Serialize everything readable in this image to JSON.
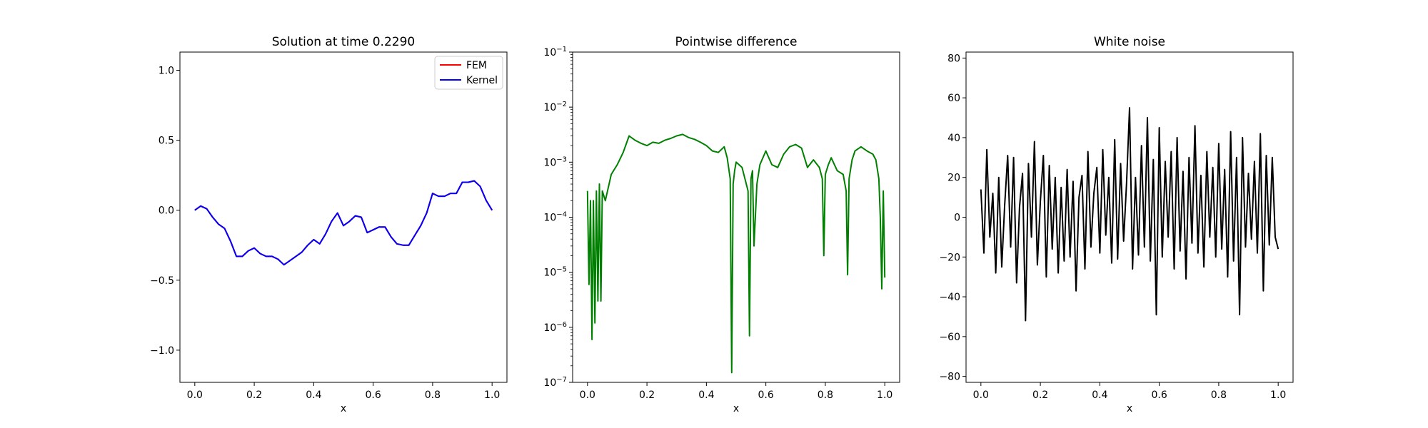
{
  "chart_data": [
    {
      "type": "line",
      "title": "Solution at time 0.2290",
      "xlabel": "x",
      "ylabel": "",
      "xlim": [
        -0.05,
        1.05
      ],
      "ylim": [
        -1.23,
        1.13
      ],
      "xticks": [
        0.0,
        0.2,
        0.4,
        0.6,
        0.8,
        1.0
      ],
      "xtick_labels": [
        "0.0",
        "0.2",
        "0.4",
        "0.6",
        "0.8",
        "1.0"
      ],
      "yticks": [
        -1.0,
        -0.5,
        0.0,
        0.5,
        1.0
      ],
      "ytick_labels": [
        "−1.0",
        "−0.5",
        "0.0",
        "0.5",
        "1.0"
      ],
      "legend_position": "top-right",
      "series": [
        {
          "name": "FEM",
          "color": "#ff0000",
          "x": [
            0.0,
            0.02,
            0.04,
            0.06,
            0.08,
            0.1,
            0.12,
            0.14,
            0.16,
            0.18,
            0.2,
            0.22,
            0.24,
            0.26,
            0.28,
            0.3,
            0.32,
            0.34,
            0.36,
            0.38,
            0.4,
            0.42,
            0.44,
            0.46,
            0.48,
            0.5,
            0.52,
            0.54,
            0.56,
            0.58,
            0.6,
            0.62,
            0.64,
            0.66,
            0.68,
            0.7,
            0.72,
            0.74,
            0.76,
            0.78,
            0.8,
            0.82,
            0.84,
            0.86,
            0.88,
            0.9,
            0.92,
            0.94,
            0.96,
            0.98,
            1.0
          ],
          "y": [
            0.0,
            0.03,
            0.01,
            -0.05,
            -0.1,
            -0.13,
            -0.22,
            -0.33,
            -0.33,
            -0.29,
            -0.27,
            -0.31,
            -0.33,
            -0.33,
            -0.35,
            -0.39,
            -0.36,
            -0.33,
            -0.3,
            -0.25,
            -0.21,
            -0.24,
            -0.17,
            -0.08,
            -0.02,
            -0.11,
            -0.08,
            -0.04,
            -0.05,
            -0.16,
            -0.14,
            -0.12,
            -0.12,
            -0.19,
            -0.24,
            -0.25,
            -0.25,
            -0.18,
            -0.11,
            -0.02,
            0.12,
            0.1,
            0.1,
            0.12,
            0.12,
            0.2,
            0.2,
            0.21,
            0.17,
            0.07,
            0.0
          ]
        },
        {
          "name": "Kernel",
          "color": "#0000ff",
          "x": [
            0.0,
            0.02,
            0.04,
            0.06,
            0.08,
            0.1,
            0.12,
            0.14,
            0.16,
            0.18,
            0.2,
            0.22,
            0.24,
            0.26,
            0.28,
            0.3,
            0.32,
            0.34,
            0.36,
            0.38,
            0.4,
            0.42,
            0.44,
            0.46,
            0.48,
            0.5,
            0.52,
            0.54,
            0.56,
            0.58,
            0.6,
            0.62,
            0.64,
            0.66,
            0.68,
            0.7,
            0.72,
            0.74,
            0.76,
            0.78,
            0.8,
            0.82,
            0.84,
            0.86,
            0.88,
            0.9,
            0.92,
            0.94,
            0.96,
            0.98,
            1.0
          ],
          "y": [
            0.0,
            0.03,
            0.01,
            -0.05,
            -0.1,
            -0.13,
            -0.22,
            -0.33,
            -0.33,
            -0.29,
            -0.27,
            -0.31,
            -0.33,
            -0.33,
            -0.35,
            -0.39,
            -0.36,
            -0.33,
            -0.3,
            -0.25,
            -0.21,
            -0.24,
            -0.17,
            -0.08,
            -0.02,
            -0.11,
            -0.08,
            -0.04,
            -0.05,
            -0.16,
            -0.14,
            -0.12,
            -0.12,
            -0.19,
            -0.24,
            -0.25,
            -0.25,
            -0.18,
            -0.11,
            -0.02,
            0.12,
            0.1,
            0.1,
            0.12,
            0.12,
            0.2,
            0.2,
            0.21,
            0.17,
            0.07,
            0.0
          ]
        }
      ]
    },
    {
      "type": "line",
      "title": "Pointwise difference",
      "xlabel": "x",
      "ylabel": "",
      "yscale": "log",
      "xlim": [
        -0.05,
        1.05
      ],
      "ylim": [
        1e-07,
        0.1
      ],
      "xticks": [
        0.0,
        0.2,
        0.4,
        0.6,
        0.8,
        1.0
      ],
      "xtick_labels": [
        "0.0",
        "0.2",
        "0.4",
        "0.6",
        "0.8",
        "1.0"
      ],
      "yticks": [
        -7,
        -6,
        -5,
        -4,
        -3,
        -2,
        -1
      ],
      "ytick_base": "10",
      "ytick_exponents": [
        "−7",
        "−6",
        "−5",
        "−4",
        "−3",
        "−2",
        "−1"
      ],
      "series": [
        {
          "color": "#008000",
          "x": [
            0.0,
            0.005,
            0.01,
            0.015,
            0.02,
            0.025,
            0.03,
            0.035,
            0.04,
            0.045,
            0.05,
            0.06,
            0.08,
            0.1,
            0.12,
            0.14,
            0.16,
            0.18,
            0.2,
            0.22,
            0.24,
            0.26,
            0.28,
            0.3,
            0.32,
            0.34,
            0.36,
            0.38,
            0.4,
            0.42,
            0.44,
            0.46,
            0.47,
            0.48,
            0.485,
            0.49,
            0.495,
            0.5,
            0.52,
            0.54,
            0.545,
            0.55,
            0.555,
            0.56,
            0.57,
            0.58,
            0.6,
            0.62,
            0.64,
            0.66,
            0.68,
            0.7,
            0.72,
            0.74,
            0.76,
            0.78,
            0.79,
            0.795,
            0.8,
            0.81,
            0.82,
            0.84,
            0.86,
            0.87,
            0.875,
            0.88,
            0.89,
            0.9,
            0.92,
            0.94,
            0.96,
            0.97,
            0.98,
            0.985,
            0.99,
            0.995,
            1.0
          ],
          "y": [
            0.0003,
            6e-06,
            0.0002,
            6e-07,
            0.0002,
            1.2e-06,
            0.0003,
            3e-06,
            0.0004,
            3e-06,
            0.0003,
            0.0002,
            0.0006,
            0.0009,
            0.0015,
            0.003,
            0.0025,
            0.0022,
            0.002,
            0.0023,
            0.0022,
            0.0025,
            0.0027,
            0.003,
            0.0032,
            0.0028,
            0.0026,
            0.0023,
            0.002,
            0.0016,
            0.0015,
            0.0019,
            0.0012,
            0.0005,
            1.5e-07,
            0.0004,
            0.0007,
            0.001,
            0.0008,
            0.0003,
            7e-07,
            0.0005,
            0.0007,
            3e-05,
            0.0004,
            0.0009,
            0.0016,
            0.0009,
            0.0008,
            0.0014,
            0.0019,
            0.0021,
            0.0018,
            0.0008,
            0.0011,
            0.0008,
            0.0005,
            2e-05,
            0.0006,
            0.0009,
            0.0012,
            0.0007,
            0.0006,
            0.0003,
            9e-06,
            0.0005,
            0.0011,
            0.0016,
            0.0019,
            0.0016,
            0.0014,
            0.0011,
            0.0005,
            0.0001,
            5e-06,
            0.0003,
            8e-06
          ]
        }
      ]
    },
    {
      "type": "line",
      "title": "White noise",
      "xlabel": "x",
      "ylabel": "",
      "xlim": [
        -0.05,
        1.05
      ],
      "ylim": [
        -83,
        83
      ],
      "xticks": [
        0.0,
        0.2,
        0.4,
        0.6,
        0.8,
        1.0
      ],
      "xtick_labels": [
        "0.0",
        "0.2",
        "0.4",
        "0.6",
        "0.8",
        "1.0"
      ],
      "yticks": [
        -80,
        -60,
        -40,
        -20,
        0,
        20,
        40,
        60,
        80
      ],
      "ytick_labels": [
        "−80",
        "−60",
        "−40",
        "−20",
        "0",
        "20",
        "40",
        "60",
        "80"
      ],
      "series": [
        {
          "color": "#000000",
          "x": [
            0.0,
            0.01,
            0.02,
            0.03,
            0.04,
            0.05,
            0.06,
            0.07,
            0.08,
            0.09,
            0.1,
            0.11,
            0.12,
            0.13,
            0.14,
            0.15,
            0.16,
            0.17,
            0.18,
            0.19,
            0.2,
            0.21,
            0.22,
            0.23,
            0.24,
            0.25,
            0.26,
            0.27,
            0.28,
            0.29,
            0.3,
            0.31,
            0.32,
            0.33,
            0.34,
            0.35,
            0.36,
            0.37,
            0.38,
            0.39,
            0.4,
            0.41,
            0.42,
            0.43,
            0.44,
            0.45,
            0.46,
            0.47,
            0.48,
            0.49,
            0.5,
            0.51,
            0.52,
            0.53,
            0.54,
            0.55,
            0.56,
            0.57,
            0.58,
            0.59,
            0.6,
            0.61,
            0.62,
            0.63,
            0.64,
            0.65,
            0.66,
            0.67,
            0.68,
            0.69,
            0.7,
            0.71,
            0.72,
            0.73,
            0.74,
            0.75,
            0.76,
            0.77,
            0.78,
            0.79,
            0.8,
            0.81,
            0.82,
            0.83,
            0.84,
            0.85,
            0.86,
            0.87,
            0.88,
            0.89,
            0.9,
            0.91,
            0.92,
            0.93,
            0.94,
            0.95,
            0.96,
            0.97,
            0.98,
            0.99,
            1.0
          ],
          "y": [
            14,
            -18,
            34,
            -10,
            12,
            -28,
            20,
            -25,
            6,
            31,
            -15,
            30,
            -33,
            5,
            22,
            -52,
            27,
            -10,
            38,
            -24,
            8,
            31,
            -30,
            26,
            -16,
            20,
            -28,
            15,
            -22,
            24,
            -20,
            18,
            -37,
            10,
            21,
            -26,
            33,
            -15,
            12,
            25,
            -18,
            34,
            -9,
            20,
            -23,
            39,
            -21,
            27,
            -12,
            17,
            55,
            -26,
            20,
            -19,
            36,
            -15,
            50,
            -22,
            29,
            -49,
            45,
            -20,
            28,
            -10,
            33,
            -26,
            40,
            -17,
            23,
            -31,
            30,
            -13,
            46,
            -18,
            21,
            -25,
            33,
            -10,
            25,
            -20,
            37,
            -16,
            24,
            -30,
            43,
            -22,
            30,
            -49,
            40,
            -15,
            22,
            -11,
            28,
            -18,
            42,
            -37,
            31,
            -14,
            30,
            -10,
            -16
          ]
        }
      ]
    }
  ]
}
